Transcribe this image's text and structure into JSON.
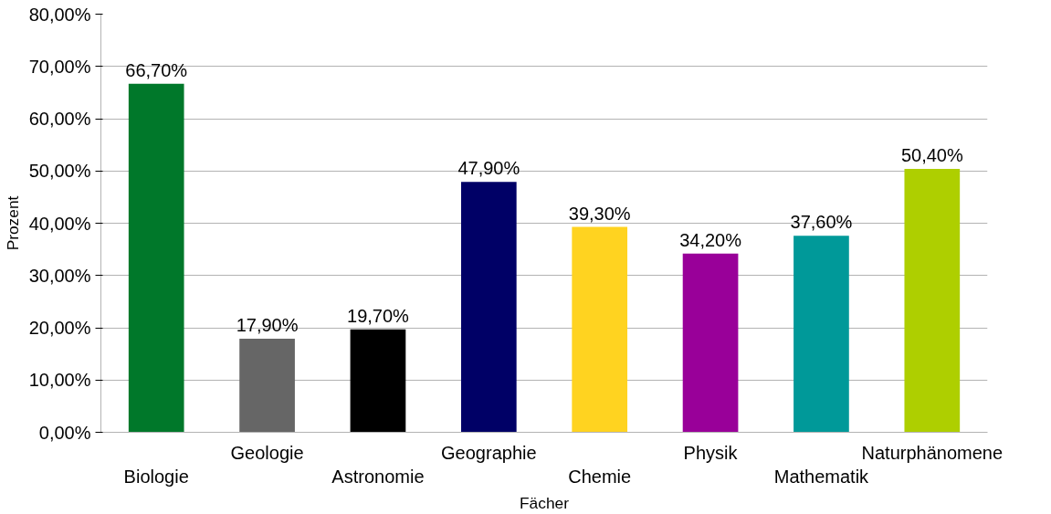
{
  "chart_data": {
    "type": "bar",
    "xlabel": "Fächer",
    "ylabel": "Prozent",
    "categories": [
      "Biologie",
      "Geologie",
      "Astronomie",
      "Geographie",
      "Chemie",
      "Physik",
      "Mathematik",
      "Naturphänomene"
    ],
    "values": [
      66.7,
      17.9,
      19.7,
      47.9,
      39.3,
      34.2,
      37.6,
      50.4
    ],
    "colors": [
      "#00782a",
      "#666666",
      "#000000",
      "#000066",
      "#ffd320",
      "#990099",
      "#009999",
      "#aecf00"
    ],
    "value_labels": [
      "66,70%",
      "17,90%",
      "19,70%",
      "47,90%",
      "39,30%",
      "34,20%",
      "37,60%",
      "50,40%"
    ],
    "ylim": [
      0,
      80
    ],
    "yticks": [
      {
        "value": 0,
        "label": "0,00%"
      },
      {
        "value": 10,
        "label": "10,00%"
      },
      {
        "value": 20,
        "label": "20,00%"
      },
      {
        "value": 30,
        "label": "30,00%"
      },
      {
        "value": 40,
        "label": "40,00%"
      },
      {
        "value": 50,
        "label": "50,00%"
      },
      {
        "value": 60,
        "label": "60,00%"
      },
      {
        "value": 70,
        "label": "70,00%"
      },
      {
        "value": 80,
        "label": "80,00%"
      }
    ],
    "grid": "y"
  }
}
